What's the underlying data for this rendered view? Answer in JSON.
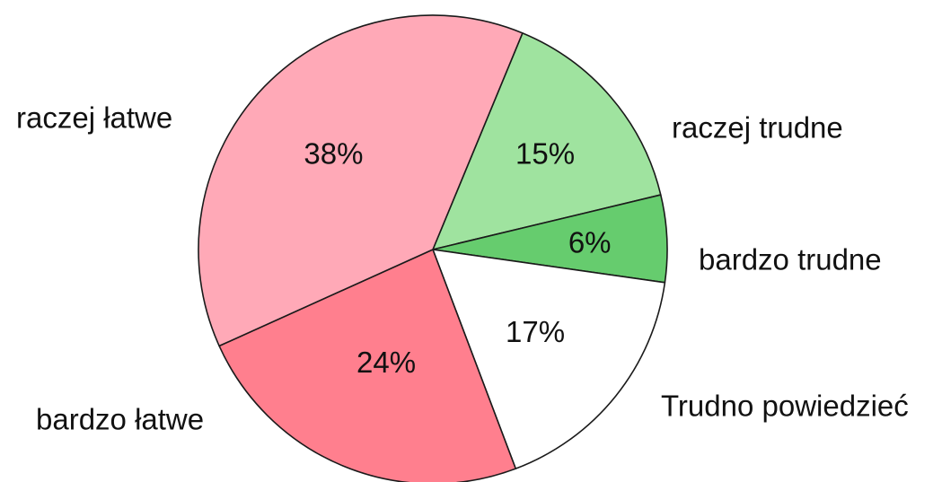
{
  "chart_data": {
    "type": "pie",
    "slices": [
      {
        "label": "raczej trudne",
        "value": 15,
        "value_label": "15%",
        "color": "#9fe39f"
      },
      {
        "label": "bardzo trudne",
        "value": 6,
        "value_label": "6%",
        "color": "#66cc6e"
      },
      {
        "label": "Trudno powiedzieć",
        "value": 17,
        "value_label": "17%",
        "color": "#ffffff"
      },
      {
        "label": "bardzo łatwe",
        "value": 24,
        "value_label": "24%",
        "color": "#ff7f8e"
      },
      {
        "label": "raczej łatwe",
        "value": 38,
        "value_label": "38%",
        "color": "#ffa9b7"
      }
    ]
  }
}
